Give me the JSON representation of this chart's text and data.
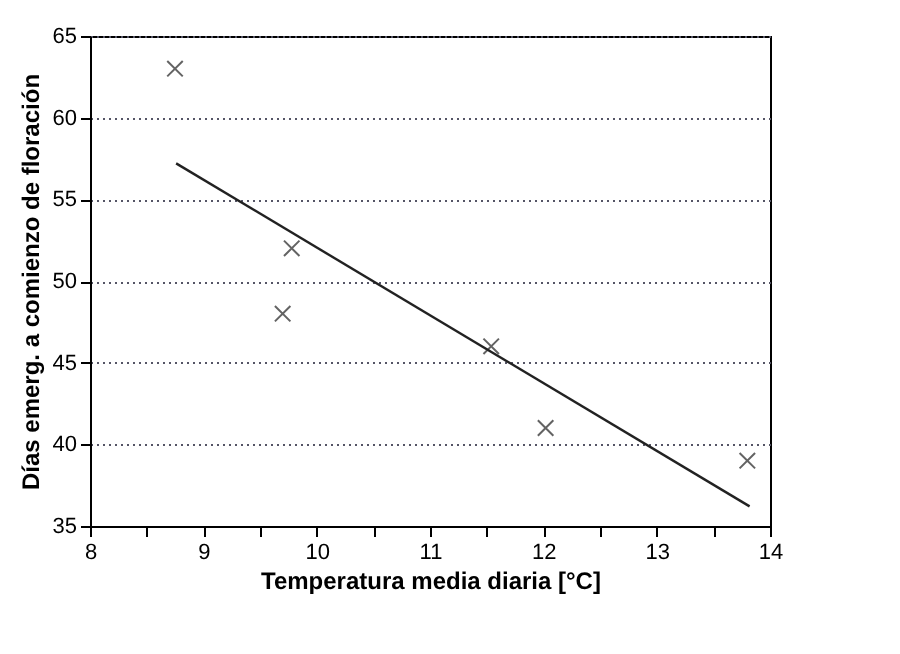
{
  "chart_data": {
    "type": "scatter",
    "xlabel": "Temperatura media diaria [°C]",
    "ylabel": "Días emerg. a comienzo de floración",
    "xlim": [
      8,
      14
    ],
    "xticks": [
      8,
      {
        "value": 8.5,
        "label": null
      },
      9,
      {
        "value": 9.5,
        "label": null
      },
      10,
      {
        "value": 10.5,
        "label": null
      },
      11,
      {
        "value": 11.5,
        "label": null
      },
      12,
      {
        "value": 12.5,
        "label": null
      },
      13,
      {
        "value": 13.5,
        "label": null
      },
      14
    ],
    "ylim": [
      35,
      65
    ],
    "yticks": [
      35,
      40,
      45,
      50,
      55,
      60,
      65
    ],
    "grid": "y",
    "marker": "cross",
    "series": [
      {
        "color": "#222222",
        "x": [
          8.75,
          9.7,
          9.78,
          11.54,
          12.02,
          13.8
        ],
        "values": [
          63,
          48,
          52,
          46,
          41,
          39
        ]
      },
      {
        "type": "line",
        "color": "#222222",
        "marker": "none",
        "line_style": "solid",
        "x": [
          8.76,
          13.82
        ],
        "values": [
          57.2,
          36.2
        ]
      }
    ]
  }
}
